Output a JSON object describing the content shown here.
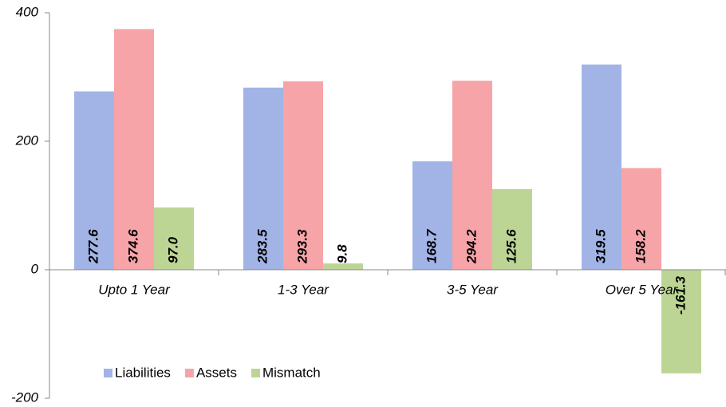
{
  "chart_data": {
    "type": "bar",
    "categories": [
      "Upto 1 Year",
      "1-3 Year",
      "3-5 Year",
      "Over 5 Year"
    ],
    "series": [
      {
        "name": "Liabilities",
        "color": "#a2b4e6",
        "values": [
          277.6,
          283.5,
          168.7,
          319.5
        ],
        "value_labels": [
          "277.6",
          "283.5",
          "168.7",
          "319.5"
        ]
      },
      {
        "name": "Assets",
        "color": "#f7a4a8",
        "values": [
          374.6,
          293.3,
          294.2,
          158.2
        ],
        "value_labels": [
          "374.6",
          "293.3",
          "294.2",
          "158.2"
        ]
      },
      {
        "name": "Mismatch",
        "color": "#bcd595",
        "values": [
          97,
          9.8,
          125.6,
          -161.3
        ],
        "value_labels": [
          "97.0",
          "9.8",
          "125.6",
          "-161.3"
        ]
      }
    ],
    "ylim": [
      -200,
      400
    ],
    "yticks": [
      -200,
      0,
      200,
      400
    ],
    "grid": false
  }
}
